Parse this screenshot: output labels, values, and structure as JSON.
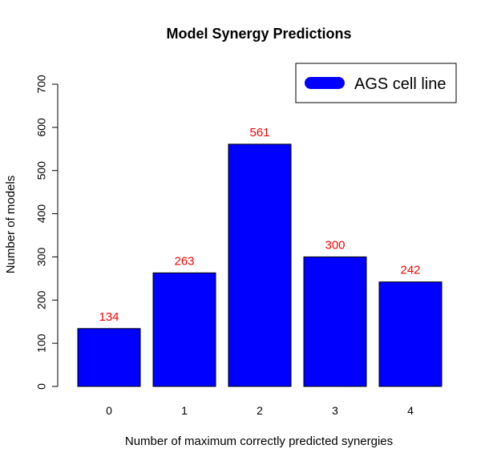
{
  "chart_data": {
    "type": "bar",
    "title": "Model Synergy Predictions",
    "xlabel": "Number of maximum correctly predicted synergies",
    "ylabel": "Number of models",
    "categories": [
      "0",
      "1",
      "2",
      "3",
      "4"
    ],
    "values": [
      134,
      263,
      561,
      300,
      242
    ],
    "data_labels": [
      "134",
      "263",
      "561",
      "300",
      "242"
    ],
    "ylim": [
      0,
      700
    ],
    "yticks": [
      "0",
      "100",
      "200",
      "300",
      "400",
      "500",
      "600",
      "700"
    ],
    "grid": false,
    "legend": {
      "position": "top-right",
      "entries": [
        {
          "label": "AGS cell line"
        }
      ]
    },
    "colors": {
      "bar": "#0000ff",
      "data_label": "#ff0000",
      "legend_swatch": "#0000ff",
      "axis": "#000000"
    }
  }
}
